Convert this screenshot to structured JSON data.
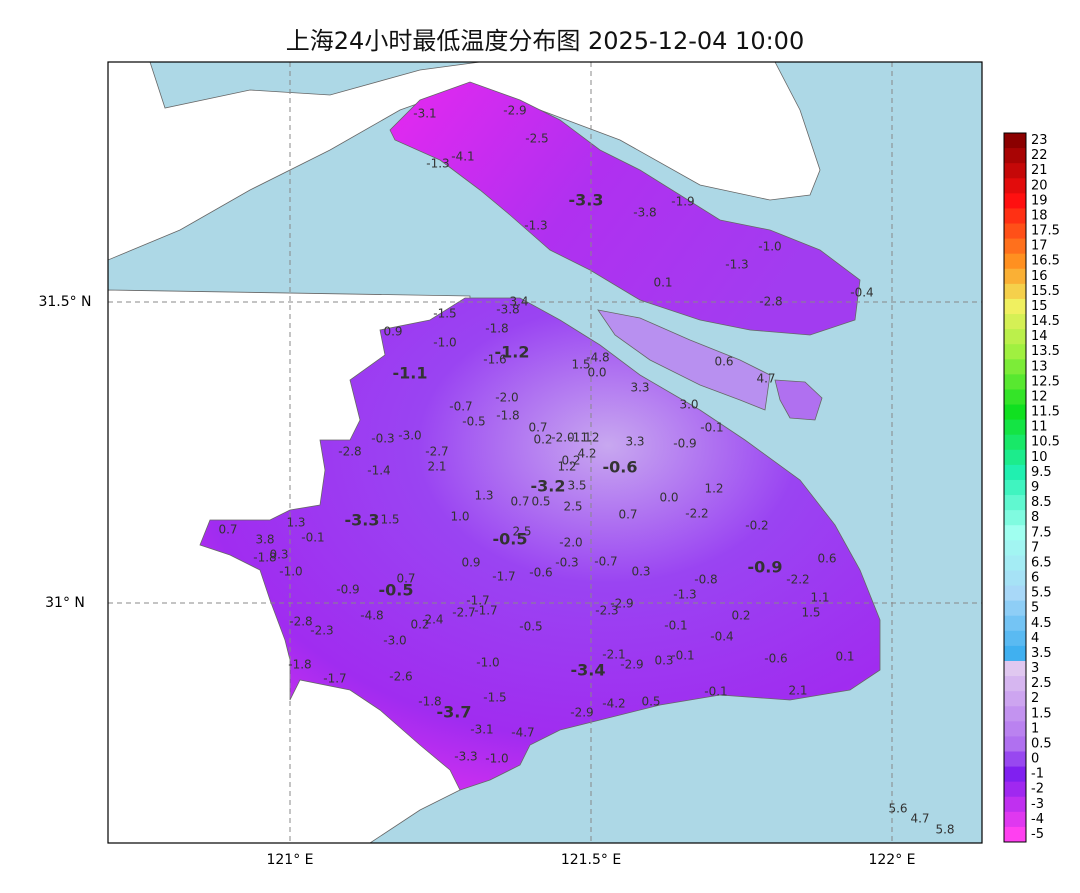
{
  "title": "上海24小时最低温度分布图 2025-12-04 10:00",
  "axes": {
    "lat_labels": [
      "31.5° N",
      "31° N"
    ],
    "lon_labels": [
      "121° E",
      "121.5° E",
      "122° E"
    ]
  },
  "colorbar": {
    "labels": [
      "23",
      "22",
      "21",
      "20",
      "19",
      "18",
      "17.5",
      "17",
      "16.5",
      "16",
      "15.5",
      "15",
      "14.5",
      "14",
      "13.5",
      "13",
      "12.5",
      "12",
      "11.5",
      "11",
      "10.5",
      "10",
      "9.5",
      "9",
      "8.5",
      "8",
      "7.5",
      "7",
      "6.5",
      "6",
      "5.5",
      "5",
      "4.5",
      "4",
      "3.5",
      "3",
      "2.5",
      "2",
      "1.5",
      "1",
      "0.5",
      "0",
      "-1",
      "-2",
      "-3",
      "-4",
      "-5"
    ]
  },
  "stations": [
    "-3.1",
    "-2.9",
    "-2.5",
    "-4.1",
    "-1.3",
    "-3.3",
    "-3.8",
    "-1.9",
    "-1.3",
    "-1.0",
    "-1.3",
    "0.1",
    "-2.8",
    "-0.4",
    "3.4",
    "-3.8",
    "-1.5",
    "0.9",
    "-1.8",
    "-1.0",
    "-1.2",
    "-1.6",
    "-4.8",
    "1.5",
    "0.0",
    "-1.1",
    "0.6",
    "4.7",
    "3.3",
    "-2.0",
    "3.0",
    "-0.7",
    "-0.5",
    "-1.8",
    "-0.1",
    "0.7",
    "-0.3",
    "-3.0",
    "0.2",
    "-2.0",
    "-1.1",
    "1.2",
    "3.3",
    "-0.9",
    "-2.8",
    "-2.7",
    "4.2",
    "0.2",
    "2.1",
    "1.2",
    "-1.4",
    "-0.6",
    "-3.2",
    "3.5",
    "1.2",
    "0.0",
    "1.3",
    "0.7",
    "0.5",
    "2.5",
    "0.7",
    "-2.2",
    "1.0",
    "-3.3",
    "1.5",
    "1.3",
    "0.7",
    "-0.2",
    "2.5",
    "-0.1",
    "3.8",
    "-0.5",
    "-2.0",
    "-1.8",
    "0.3",
    "0.9",
    "-0.3",
    "-0.7",
    "-0.6",
    "0.3",
    "-1.0",
    "-1.7",
    "0.6",
    "-0.9",
    "-2.2",
    "0.7",
    "-0.8",
    "-0.9",
    "-0.5",
    "-1.7",
    "-1.3",
    "1.1",
    "-2.3",
    "-2.9",
    "-2.7",
    "-1.7",
    "-4.8",
    "1.5",
    "0.2",
    "-2.8",
    "2.4",
    "0.2",
    "-2.3",
    "-0.5",
    "-0.1",
    "-3.0",
    "-0.4",
    "-2.1",
    "-2.9",
    "0.3",
    "-0.1",
    "-0.6",
    "0.1",
    "-1.8",
    "-1.0",
    "-3.4",
    "-1.7",
    "-2.6",
    "-0.1",
    "2.1",
    "-1.5",
    "-1.8",
    "0.5",
    "-4.2",
    "-2.9",
    "-3.7",
    "-3.1",
    "-4.7",
    "-3.3",
    "-1.0",
    "5.6",
    "4.7",
    "5.8"
  ]
}
